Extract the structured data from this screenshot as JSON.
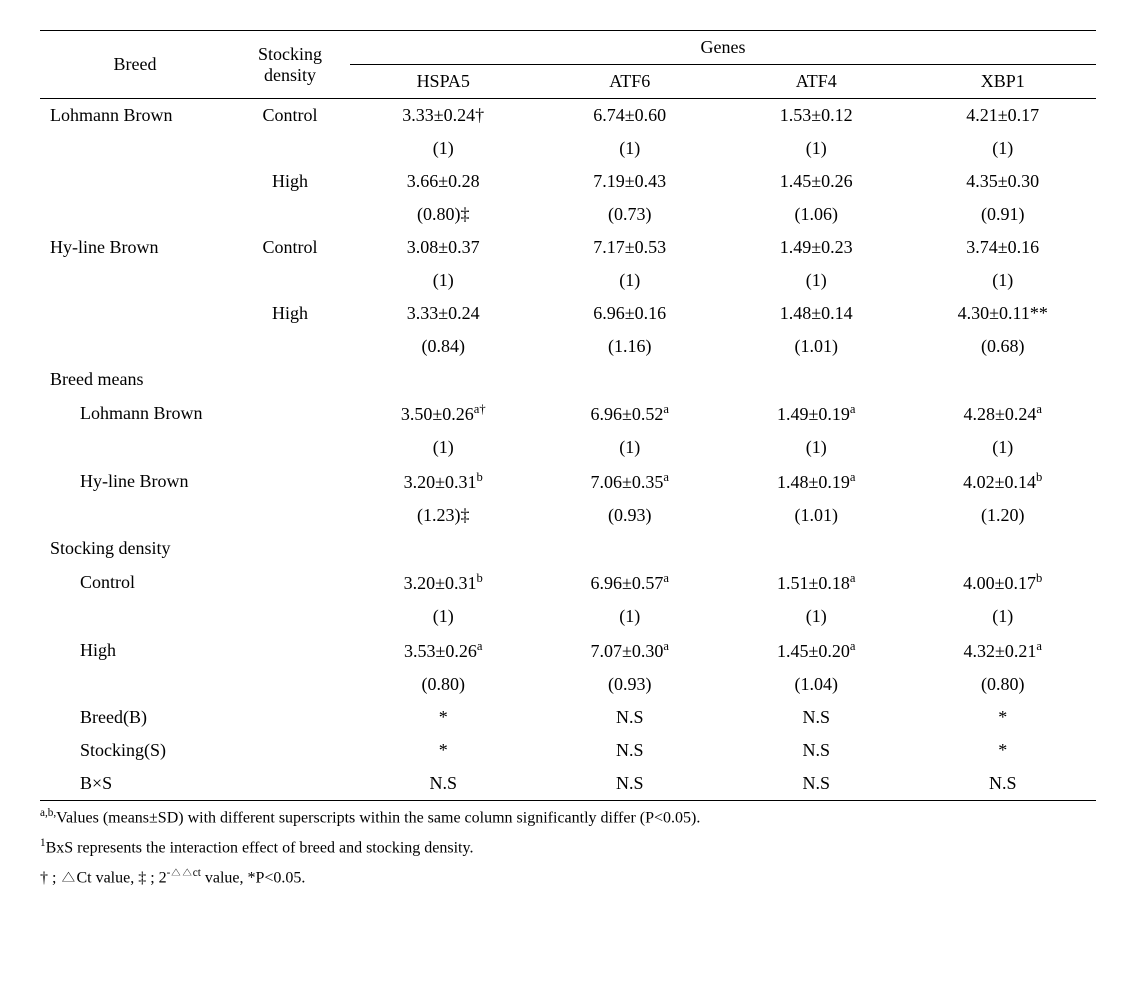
{
  "header": {
    "breed": "Breed",
    "density": "Stocking density",
    "genes": "Genes",
    "gene_cols": [
      "HSPA5",
      "ATF6",
      "ATF4",
      "XBP1"
    ]
  },
  "rows": [
    {
      "breed": "Lohmann Brown",
      "density": "Control",
      "v": [
        "3.33±0.24†",
        "6.74±0.60",
        "1.53±0.12",
        "4.21±0.17"
      ],
      "p": [
        "(1)",
        "(1)",
        "(1)",
        "(1)"
      ]
    },
    {
      "breed": "",
      "density": "High",
      "v": [
        "3.66±0.28",
        "7.19±0.43",
        "1.45±0.26",
        "4.35±0.30"
      ],
      "p": [
        "(0.80)‡",
        "(0.73)",
        "(1.06)",
        "(0.91)"
      ]
    },
    {
      "breed": "Hy-line Brown",
      "density": "Control",
      "v": [
        "3.08±0.37",
        "7.17±0.53",
        "1.49±0.23",
        "3.74±0.16"
      ],
      "p": [
        "(1)",
        "(1)",
        "(1)",
        "(1)"
      ]
    },
    {
      "breed": "",
      "density": "High",
      "v": [
        "3.33±0.24",
        "6.96±0.16",
        "1.48±0.14",
        "4.30±0.11**"
      ],
      "p": [
        "(0.84)",
        "(1.16)",
        "(1.01)",
        "(0.68)"
      ]
    }
  ],
  "breed_means_label": "Breed means",
  "breed_means": [
    {
      "label": "Lohmann Brown",
      "v": [
        {
          "val": "3.50±0.26",
          "sup": "a†"
        },
        {
          "val": "6.96±0.52",
          "sup": "a"
        },
        {
          "val": "1.49±0.19",
          "sup": "a"
        },
        {
          "val": "4.28±0.24",
          "sup": "a"
        }
      ],
      "p": [
        "(1)",
        "(1)",
        "(1)",
        "(1)"
      ]
    },
    {
      "label": "Hy-line Brown",
      "v": [
        {
          "val": "3.20±0.31",
          "sup": "b"
        },
        {
          "val": "7.06±0.35",
          "sup": "a"
        },
        {
          "val": "1.48±0.19",
          "sup": "a"
        },
        {
          "val": "4.02±0.14",
          "sup": "b"
        }
      ],
      "p": [
        "(1.23)‡",
        "(0.93)",
        "(1.01)",
        "(1.20)"
      ]
    }
  ],
  "stocking_label": "Stocking density",
  "stocking": [
    {
      "label": "Control",
      "v": [
        {
          "val": "3.20±0.31",
          "sup": "b"
        },
        {
          "val": "6.96±0.57",
          "sup": "a"
        },
        {
          "val": "1.51±0.18",
          "sup": "a"
        },
        {
          "val": "4.00±0.17",
          "sup": "b"
        }
      ],
      "p": [
        "(1)",
        "(1)",
        "(1)",
        "(1)"
      ]
    },
    {
      "label": "High",
      "v": [
        {
          "val": "3.53±0.26",
          "sup": "a"
        },
        {
          "val": "7.07±0.30",
          "sup": "a"
        },
        {
          "val": "1.45±0.20",
          "sup": "a"
        },
        {
          "val": "4.32±0.21",
          "sup": "a"
        }
      ],
      "p": [
        "(0.80)",
        "(0.93)",
        "(1.04)",
        "(0.80)"
      ]
    }
  ],
  "effects": [
    {
      "label": "Breed(B)",
      "v": [
        "*",
        "N.S",
        "N.S",
        "*"
      ]
    },
    {
      "label": "Stocking(S)",
      "v": [
        "*",
        "N.S",
        "N.S",
        "*"
      ]
    },
    {
      "label": "B×S",
      "v": [
        "N.S",
        "N.S",
        "N.S",
        "N.S"
      ]
    }
  ],
  "footnotes": {
    "f1_pre": "a,b,",
    "f1": "Values (means±SD) with different superscripts within the same column significantly differ (P<0.05).",
    "f2_pre": "1",
    "f2": "BxS represents the interaction effect of breed and stocking density.",
    "f3": "† ; △Ct value, ‡ ; 2",
    "f3_sup": "-△△ct",
    "f3_tail": " value, *P<0.05."
  }
}
